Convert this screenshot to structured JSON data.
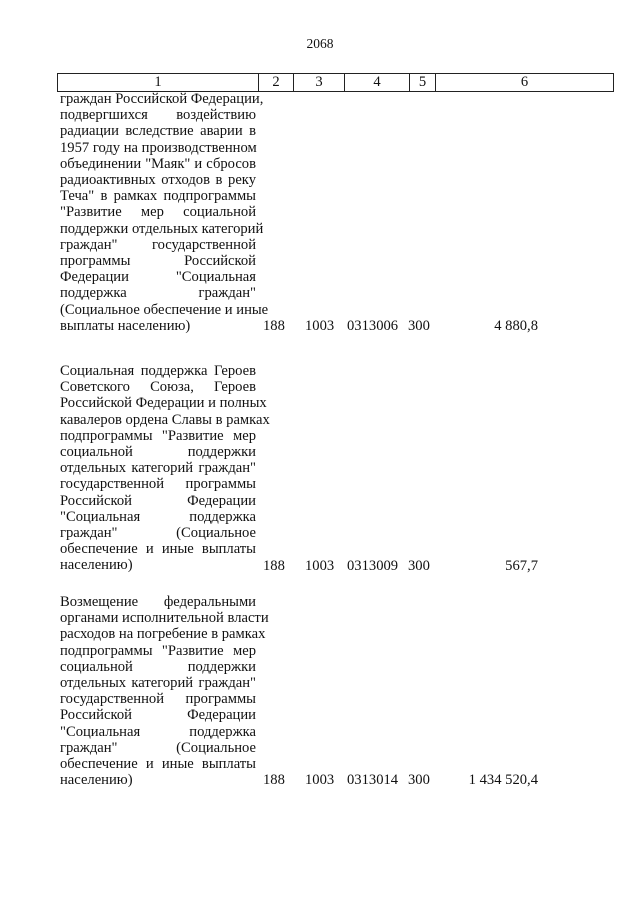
{
  "page_number": "2068",
  "header": [
    "1",
    "2",
    "3",
    "4",
    "5",
    "6"
  ],
  "rows": [
    {
      "lines": [
        "граждан Российской Федерации,",
        "подвергшихся воздействию",
        "радиации вследствие аварии в",
        "1957 году на производственном",
        "объединении \"Маяк\" и сбросов",
        "радиоактивных отходов в реку",
        "Теча\" в рамках подпрограммы",
        "\"Развитие мер социальной",
        "поддержки отдельных категорий",
        "граждан\" государственной",
        "программы Российской",
        "Федерации \"Социальная",
        "поддержка граждан\"",
        "(Социальное обеспечение и иные",
        "выплаты населению)"
      ],
      "c2": "188",
      "c3": "1003",
      "c4": "0313006",
      "c5": "300",
      "c6": "4 880,8"
    },
    {
      "lines": [
        "Социальная поддержка Героев",
        "Советского Союза, Героев",
        "Российской Федерации и полных",
        "кавалеров ордена Славы в рамках",
        "подпрограммы \"Развитие мер",
        "социальной поддержки",
        "отдельных категорий граждан\"",
        "государственной программы",
        "Российской Федерации",
        "\"Социальная поддержка",
        "граждан\" (Социальное",
        "обеспечение и иные выплаты",
        "населению)"
      ],
      "c2": "188",
      "c3": "1003",
      "c4": "0313009",
      "c5": "300",
      "c6": "567,7"
    },
    {
      "lines": [
        "Возмещение федеральными",
        "органами исполнительной власти",
        "расходов на погребение в рамках",
        "подпрограммы \"Развитие мер",
        "социальной поддержки",
        "отдельных категорий граждан\"",
        "государственной программы",
        "Российской Федерации",
        "\"Социальная поддержка",
        "граждан\" (Социальное",
        "обеспечение и иные выплаты",
        "населению)"
      ],
      "c2": "188",
      "c3": "1003",
      "c4": "0313014",
      "c5": "300",
      "c6": "1 434 520,4"
    }
  ]
}
